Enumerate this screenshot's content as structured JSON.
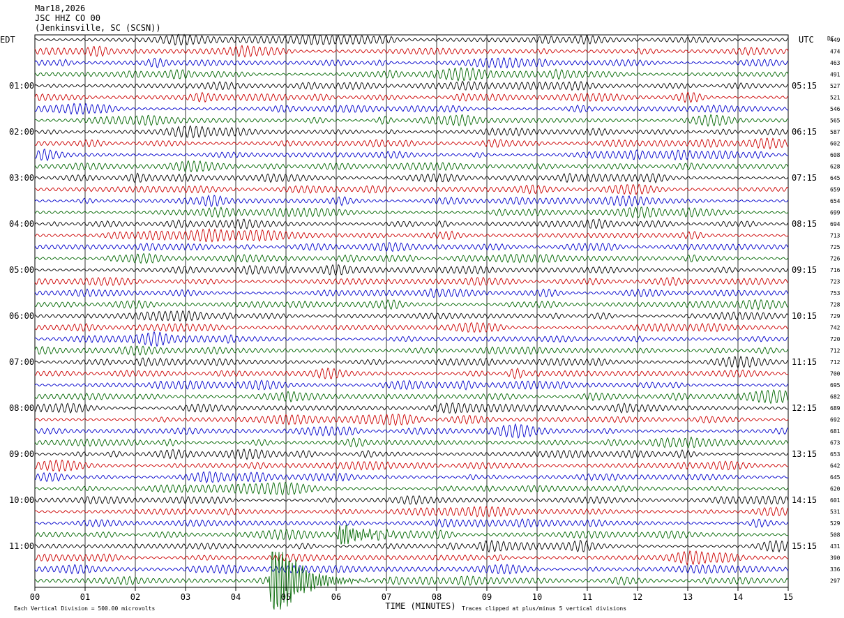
{
  "header": {
    "date": "Mar18,2026",
    "station": "JSC HHZ CO 00",
    "location": "(Jenkinsville, SC (SCSN))"
  },
  "chart_data": {
    "type": "line",
    "title": "JSC HHZ CO 00",
    "left_axis_label": "EDT",
    "right_axis_label": "UTC",
    "dc_label": "DC",
    "xlabel": "TIME (MINUTES)",
    "x_ticks": [
      "00",
      "01",
      "02",
      "03",
      "04",
      "05",
      "06",
      "07",
      "08",
      "09",
      "10",
      "11",
      "12",
      "13",
      "14",
      "15"
    ],
    "xlim": [
      0,
      15
    ],
    "left_hour_labels": [
      {
        "row": 4,
        "text": "01:00"
      },
      {
        "row": 8,
        "text": "02:00"
      },
      {
        "row": 12,
        "text": "03:00"
      },
      {
        "row": 16,
        "text": "04:00"
      },
      {
        "row": 20,
        "text": "05:00"
      },
      {
        "row": 24,
        "text": "06:00"
      },
      {
        "row": 28,
        "text": "07:00"
      },
      {
        "row": 32,
        "text": "08:00"
      },
      {
        "row": 36,
        "text": "09:00"
      },
      {
        "row": 40,
        "text": "10:00"
      },
      {
        "row": 44,
        "text": "11:00"
      }
    ],
    "right_hour_labels": [
      {
        "row": 4,
        "text": "05:15"
      },
      {
        "row": 8,
        "text": "06:15"
      },
      {
        "row": 12,
        "text": "07:15"
      },
      {
        "row": 16,
        "text": "08:15"
      },
      {
        "row": 20,
        "text": "09:15"
      },
      {
        "row": 24,
        "text": "10:15"
      },
      {
        "row": 28,
        "text": "11:15"
      },
      {
        "row": 32,
        "text": "12:15"
      },
      {
        "row": 36,
        "text": "13:15"
      },
      {
        "row": 40,
        "text": "14:15"
      },
      {
        "row": 44,
        "text": "15:15"
      }
    ],
    "dc_offsets": [
      449,
      474,
      463,
      491,
      527,
      521,
      546,
      565,
      587,
      602,
      608,
      628,
      645,
      659,
      654,
      699,
      694,
      713,
      725,
      726,
      716,
      723,
      753,
      728,
      729,
      742,
      720,
      712,
      712,
      700,
      695,
      682,
      689,
      692,
      681,
      673,
      653,
      642,
      645,
      620,
      601,
      531,
      529,
      508,
      431,
      390,
      336,
      297
    ],
    "trace_colors": [
      "#000000",
      "#cc0000",
      "#0000cc",
      "#006600"
    ],
    "grid_color": "#000000",
    "events": [
      {
        "row": 47,
        "minute": 4.75,
        "amplitude_divisions": 5,
        "note": "clipped"
      },
      {
        "row": 43,
        "minute": 6.1,
        "amplitude_divisions": 1.2
      }
    ],
    "footer_left": "Each Vertical Division =  500.00 microvolts",
    "footer_right": "Traces clipped at plus/minus 5 vertical divisions"
  }
}
